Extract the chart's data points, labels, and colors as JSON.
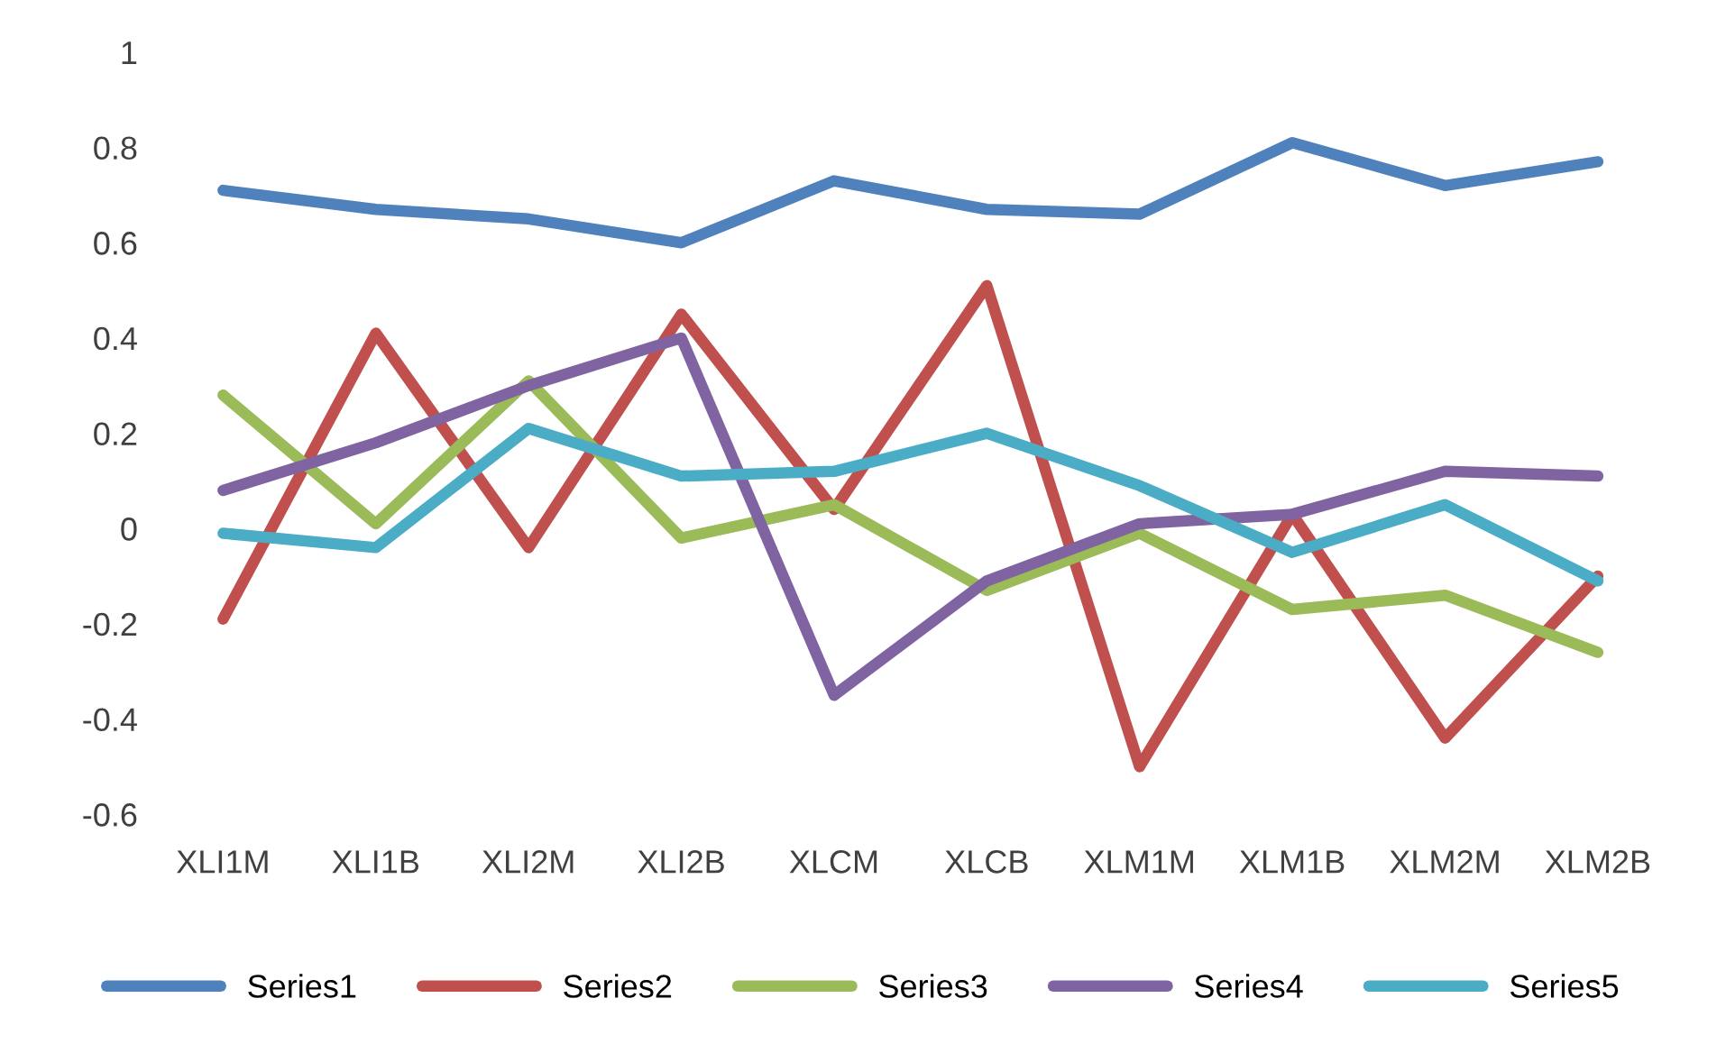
{
  "chart_data": {
    "type": "line",
    "categories": [
      "XLI1M",
      "XLI1B",
      "XLI2M",
      "XLI2B",
      "XLCM",
      "XLCB",
      "XLM1M",
      "XLM1B",
      "XLM2M",
      "XLM2B"
    ],
    "series": [
      {
        "name": "Series1",
        "color": "#4f81bd",
        "values": [
          0.71,
          0.67,
          0.65,
          0.6,
          0.73,
          0.67,
          0.66,
          0.81,
          0.72,
          0.77
        ]
      },
      {
        "name": "Series2",
        "color": "#c0504d",
        "values": [
          -0.19,
          0.41,
          -0.04,
          0.45,
          0.04,
          0.51,
          -0.5,
          0.03,
          -0.44,
          -0.1
        ]
      },
      {
        "name": "Series3",
        "color": "#9bbb59",
        "values": [
          0.28,
          0.01,
          0.31,
          -0.02,
          0.05,
          -0.13,
          -0.01,
          -0.17,
          -0.14,
          -0.26
        ]
      },
      {
        "name": "Series4",
        "color": "#8064a2",
        "values": [
          0.08,
          0.18,
          0.3,
          0.4,
          -0.35,
          -0.11,
          0.01,
          0.03,
          0.12,
          0.11
        ]
      },
      {
        "name": "Series5",
        "color": "#4bacc6",
        "values": [
          -0.01,
          -0.04,
          0.21,
          0.11,
          0.12,
          0.2,
          0.09,
          -0.05,
          0.05,
          -0.11
        ]
      }
    ],
    "ylim": [
      -0.6,
      1
    ],
    "yticks": [
      -0.6,
      -0.4,
      -0.2,
      0,
      0.2,
      0.4,
      0.6,
      0.8,
      1
    ],
    "grid": false,
    "legend": "bottom",
    "marker": "none",
    "line_style": "solid"
  }
}
